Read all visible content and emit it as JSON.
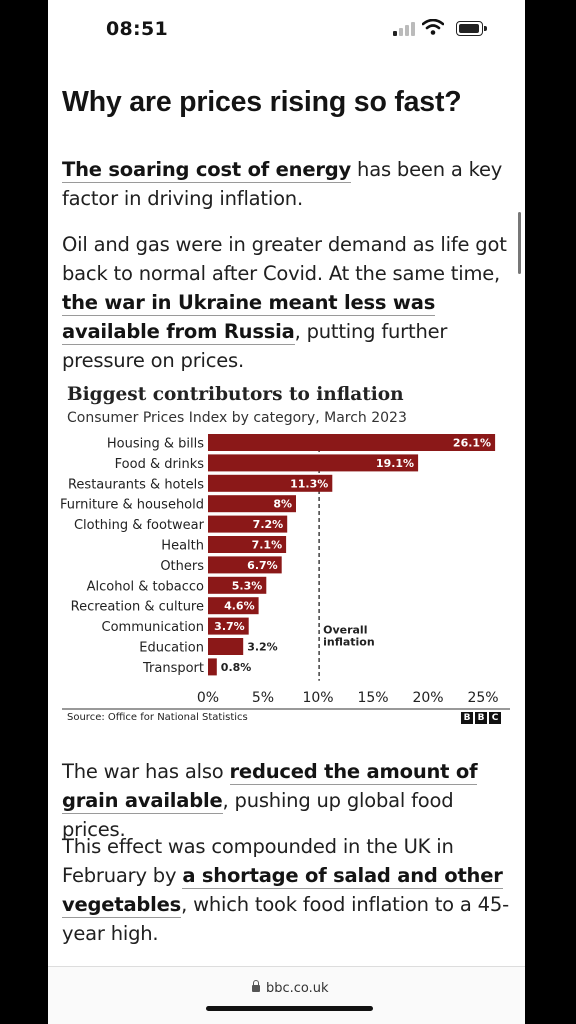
{
  "status_bar": {
    "time": "08:51"
  },
  "article": {
    "heading": "Why are prices rising so fast?",
    "p1": {
      "link": "The soaring cost of energy",
      "text": " has been a key factor in driving inflation."
    },
    "p2": {
      "text_a": "Oil and gas were in greater demand as life got back to normal after Covid. At the same time, ",
      "link": "the war in Ukraine meant less was available from Russia",
      "text_b": ", putting further pressure on prices."
    },
    "p3": {
      "text_a": "The war has also ",
      "link": "reduced the amount of grain available",
      "text_b": ", pushing up global food prices."
    },
    "p4": {
      "text_a": "This effect was compounded in the UK in February by ",
      "link": "a shortage of salad and other vegetables",
      "text_b": ", which took food inflation to a 45-year high."
    }
  },
  "chart": {
    "source": "Source: Office for National Statistics",
    "logo": [
      "B",
      "B",
      "C"
    ]
  },
  "chart_data": {
    "type": "bar",
    "orientation": "horizontal",
    "title": "Biggest contributors to inflation",
    "subtitle": "Consumer Prices Index by category, March 2023",
    "categories": [
      "Housing & bills",
      "Food & drinks",
      "Restaurants & hotels",
      "Furniture & household",
      "Clothing & footwear",
      "Health",
      "Others",
      "Alcohol & tobacco",
      "Recreation & culture",
      "Communication",
      "Education",
      "Transport"
    ],
    "values": [
      26.1,
      19.1,
      11.3,
      8,
      7.2,
      7.1,
      6.7,
      5.3,
      4.6,
      3.7,
      3.2,
      0.8
    ],
    "value_labels": [
      "26.1%",
      "19.1%",
      "11.3%",
      "8%",
      "7.2%",
      "7.1%",
      "6.7%",
      "5.3%",
      "4.6%",
      "3.7%",
      "3.2%",
      "0.8%"
    ],
    "xticks": [
      0,
      5,
      10,
      15,
      20,
      25
    ],
    "xtick_labels": [
      "0%",
      "5%",
      "10%",
      "15%",
      "20%",
      "25%"
    ],
    "xlim": [
      0,
      27
    ],
    "bar_color": "#8b1818",
    "reference_line": {
      "value": 10.1,
      "label_line1": "Overall",
      "label_line2": "inflation"
    },
    "grid": false
  },
  "browser": {
    "url": "bbc.co.uk"
  }
}
